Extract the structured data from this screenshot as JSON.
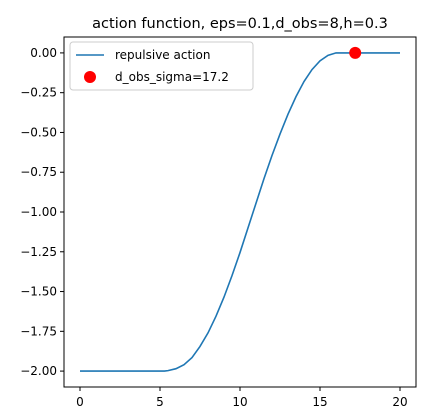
{
  "chart_data": {
    "type": "line",
    "title": "action function, eps=0.1,d_obs=8,h=0.3",
    "xlabel": "",
    "ylabel": "",
    "xlim": [
      -1,
      21
    ],
    "ylim": [
      -2.1,
      0.1
    ],
    "xticks": [
      0,
      5,
      10,
      15,
      20
    ],
    "xtick_labels": [
      "0",
      "5",
      "10",
      "15",
      "20"
    ],
    "yticks": [
      0.0,
      -0.25,
      -0.5,
      -0.75,
      -1.0,
      -1.25,
      -1.5,
      -1.75,
      -2.0
    ],
    "ytick_labels": [
      "0.00",
      "−0.25",
      "−0.50",
      "−0.75",
      "−1.00",
      "−1.25",
      "−1.50",
      "−1.75",
      "−2.00"
    ],
    "grid": false,
    "legend_position": "top-left",
    "series": [
      {
        "name": "repulsive action",
        "kind": "line",
        "color": "#1f77b4",
        "x": [
          0,
          1,
          2,
          3,
          4,
          5,
          5.28,
          5.5,
          6,
          6.5,
          7,
          7.5,
          8,
          8.5,
          9,
          9.5,
          10,
          10.5,
          11,
          11.5,
          12,
          12.5,
          13,
          13.5,
          14,
          14.5,
          15,
          15.5,
          16,
          16.5,
          17,
          17.2,
          18,
          19,
          20
        ],
        "y": [
          -2.0,
          -2.0,
          -2.0,
          -2.0,
          -2.0,
          -2.0,
          -2.0,
          -1.997,
          -1.985,
          -1.96,
          -1.915,
          -1.845,
          -1.76,
          -1.655,
          -1.535,
          -1.4,
          -1.255,
          -1.1,
          -0.945,
          -0.79,
          -0.645,
          -0.51,
          -0.385,
          -0.275,
          -0.18,
          -0.105,
          -0.05,
          -0.015,
          0.0,
          0.0,
          0.0,
          0.0,
          0.0,
          0.0,
          0.0
        ]
      },
      {
        "name": "d_obs_sigma=17.2",
        "kind": "scatter",
        "color": "#ff0000",
        "x": [
          17.2
        ],
        "y": [
          0.0
        ]
      }
    ]
  }
}
